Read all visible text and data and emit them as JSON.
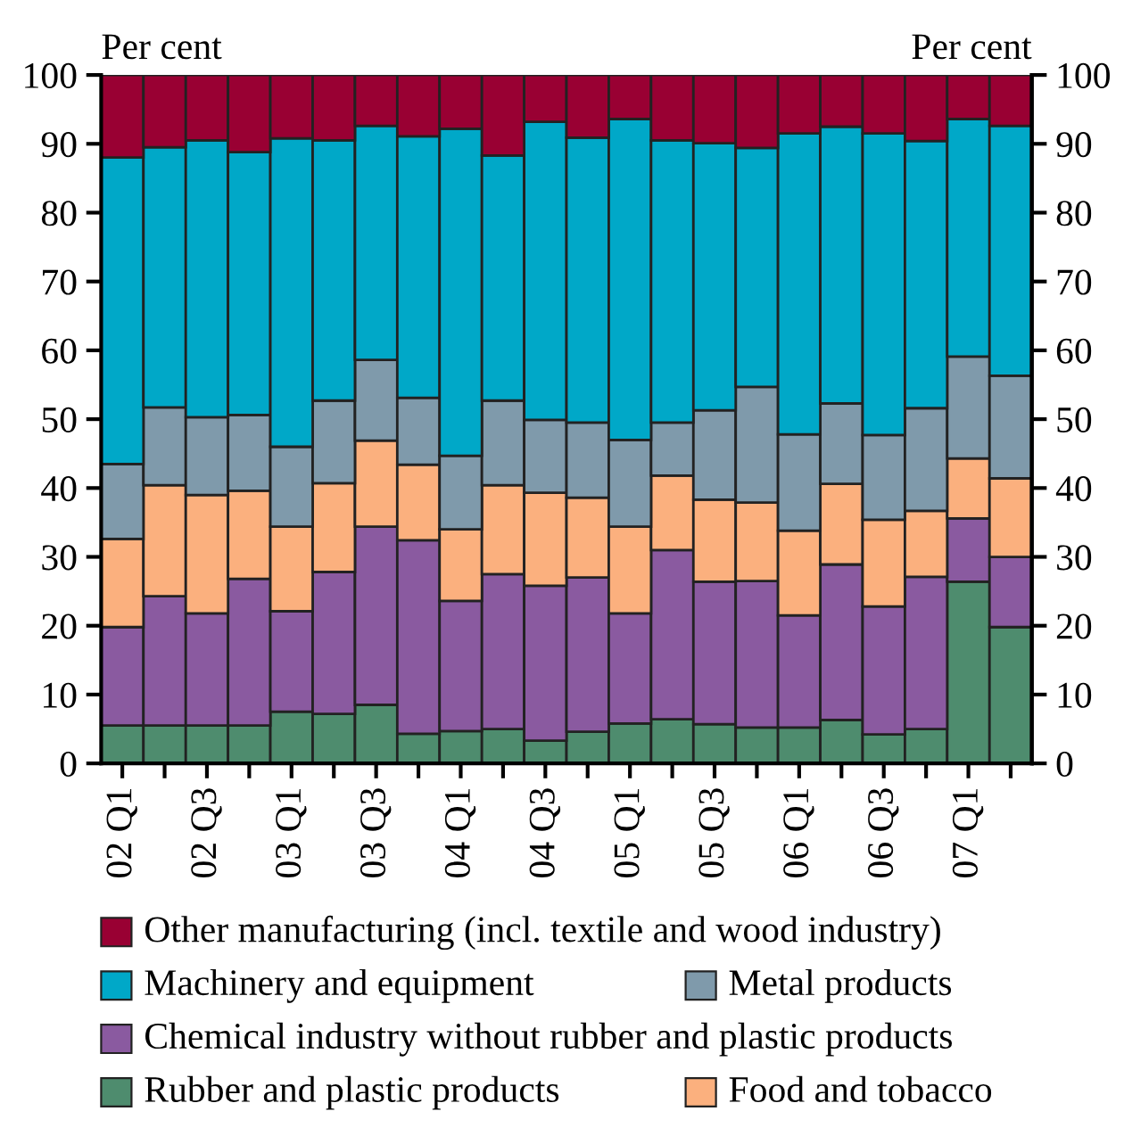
{
  "chart_data": {
    "type": "bar",
    "stacked": true,
    "ylabel": "Per cent",
    "y2label": "Per cent",
    "categories": [
      "02 Q1",
      null,
      "02 Q3",
      null,
      "03 Q1",
      null,
      "03 Q3",
      null,
      "04 Q1",
      null,
      "04 Q3",
      null,
      "05 Q1",
      null,
      "05 Q3",
      null,
      "06 Q1",
      null,
      "06 Q3",
      null,
      "07 Q1",
      null
    ],
    "ylim": [
      0,
      100
    ],
    "yticks": [
      0,
      10,
      20,
      30,
      40,
      50,
      60,
      70,
      80,
      90,
      100
    ],
    "y2lim": [
      0,
      100
    ],
    "y2ticks": [
      0,
      10,
      20,
      30,
      40,
      50,
      60,
      70,
      80,
      90,
      100
    ],
    "legend": "bottom",
    "grid": false,
    "series": [
      {
        "name": "Rubber and plastic products",
        "color": "#4e8c6e",
        "values": [
          5.5,
          5.5,
          5.5,
          5.5,
          7.5,
          7.2,
          8.5,
          4.3,
          4.7,
          5.0,
          3.3,
          4.6,
          5.8,
          6.4,
          5.7,
          5.2,
          5.2,
          6.3,
          4.2,
          5.0,
          26.4,
          19.8
        ]
      },
      {
        "name": "Chemical industry without rubber and plastic products",
        "color": "#8a5aa0",
        "values": [
          14.3,
          18.8,
          16.3,
          21.3,
          14.6,
          20.6,
          25.9,
          28.1,
          18.9,
          22.5,
          22.5,
          22.4,
          16.0,
          24.6,
          20.7,
          21.3,
          16.3,
          22.6,
          18.6,
          22.1,
          9.2,
          10.2
        ]
      },
      {
        "name": "Food and tobacco",
        "color": "#fbb07e",
        "values": [
          12.8,
          16.1,
          17.2,
          12.8,
          12.3,
          12.9,
          12.5,
          11.0,
          10.4,
          12.9,
          13.5,
          11.6,
          12.6,
          10.8,
          11.9,
          11.4,
          12.3,
          11.7,
          12.6,
          9.6,
          8.7,
          11.4
        ]
      },
      {
        "name": "Metal products",
        "color": "#7f9aab",
        "values": [
          10.9,
          11.3,
          11.3,
          11.0,
          11.6,
          12.0,
          11.7,
          9.7,
          10.7,
          12.3,
          10.6,
          10.9,
          12.6,
          7.7,
          13.0,
          16.8,
          14.0,
          11.7,
          12.3,
          14.9,
          14.8,
          14.9
        ]
      },
      {
        "name": "Machinery and equipment",
        "color": "#00a8c8",
        "values": [
          44.5,
          37.8,
          40.2,
          38.2,
          44.8,
          37.8,
          34.0,
          38.0,
          47.5,
          35.6,
          43.3,
          41.4,
          46.6,
          41.0,
          38.8,
          34.7,
          43.7,
          40.2,
          43.8,
          38.8,
          34.5,
          36.3
        ]
      },
      {
        "name": "Other manufacturing (incl. textile and wood industry)",
        "color": "#990033",
        "values": [
          12.0,
          10.5,
          9.5,
          11.2,
          9.2,
          9.5,
          7.4,
          8.9,
          7.8,
          11.7,
          6.8,
          9.1,
          6.4,
          9.5,
          9.9,
          10.6,
          8.5,
          7.5,
          8.5,
          9.6,
          6.4,
          7.4
        ]
      }
    ]
  }
}
